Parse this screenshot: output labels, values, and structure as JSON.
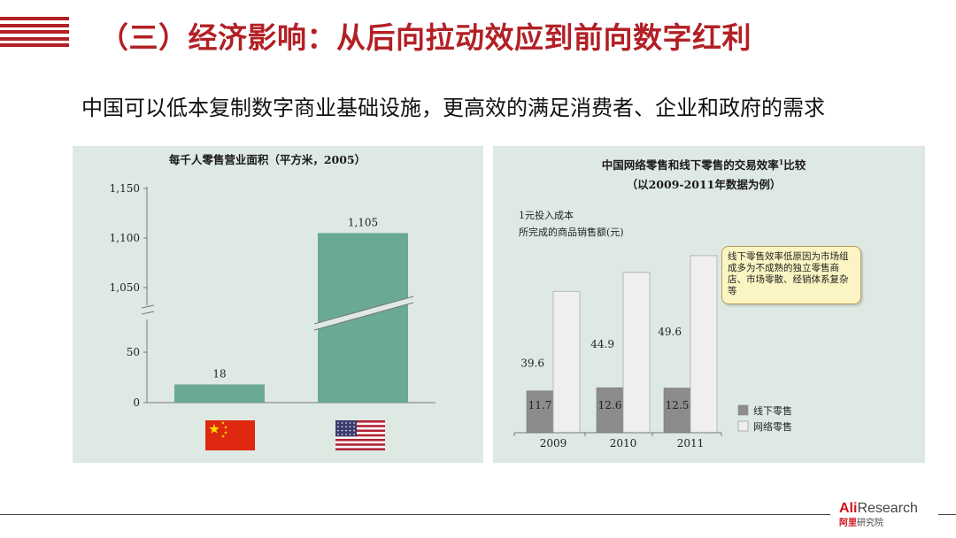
{
  "header": {
    "title": "（三）经济影响：从后向拉动效应到前向数字红利",
    "subtitle": "中国可以低本复制数字商业基础设施，更高效的满足消费者、企业和政府的需求"
  },
  "chart_data": [
    {
      "type": "bar",
      "title": "每千人零售营业面积（平方米，2005）",
      "categories": [
        "China",
        "USA"
      ],
      "values": [
        18,
        1105
      ],
      "value_labels": [
        "18",
        "1,105"
      ],
      "y_ticks": [
        "0",
        "50",
        "1,050",
        "1,100",
        "1,150"
      ],
      "axis_break": true,
      "bar_color": "#6aaa94",
      "flags": [
        "china-flag",
        "usa-flag"
      ]
    },
    {
      "type": "bar",
      "title_line1": "中国网络零售和线下零售的交易效率",
      "title_sup": "1",
      "title_line1_end": "比较",
      "title_line2": "（以2009-2011年数据为例）",
      "ylabel_line1": "1元投入成本",
      "ylabel_line2": "所完成的商品销售额(元)",
      "categories": [
        "2009",
        "2010",
        "2011"
      ],
      "series": [
        {
          "name": "线下零售",
          "values": [
            11.7,
            12.6,
            12.5
          ],
          "labels": [
            "11.7",
            "12.6",
            "12.5"
          ],
          "color": "#8c8c8c"
        },
        {
          "name": "网络零售",
          "values": [
            39.6,
            44.9,
            49.6
          ],
          "labels": [
            "39.6",
            "44.9",
            "49.6"
          ],
          "color": "#efefef"
        }
      ],
      "ylim": [
        0,
        55
      ],
      "callout": "线下零售效率低原因为市场组成多为不成熟的独立零售商店、市场零散、经销体系复杂等"
    }
  ],
  "footer": {
    "logo_ali": "Ali",
    "logo_research": "Research",
    "logo_cn_red": "阿里",
    "logo_cn_gray": "研究院"
  }
}
